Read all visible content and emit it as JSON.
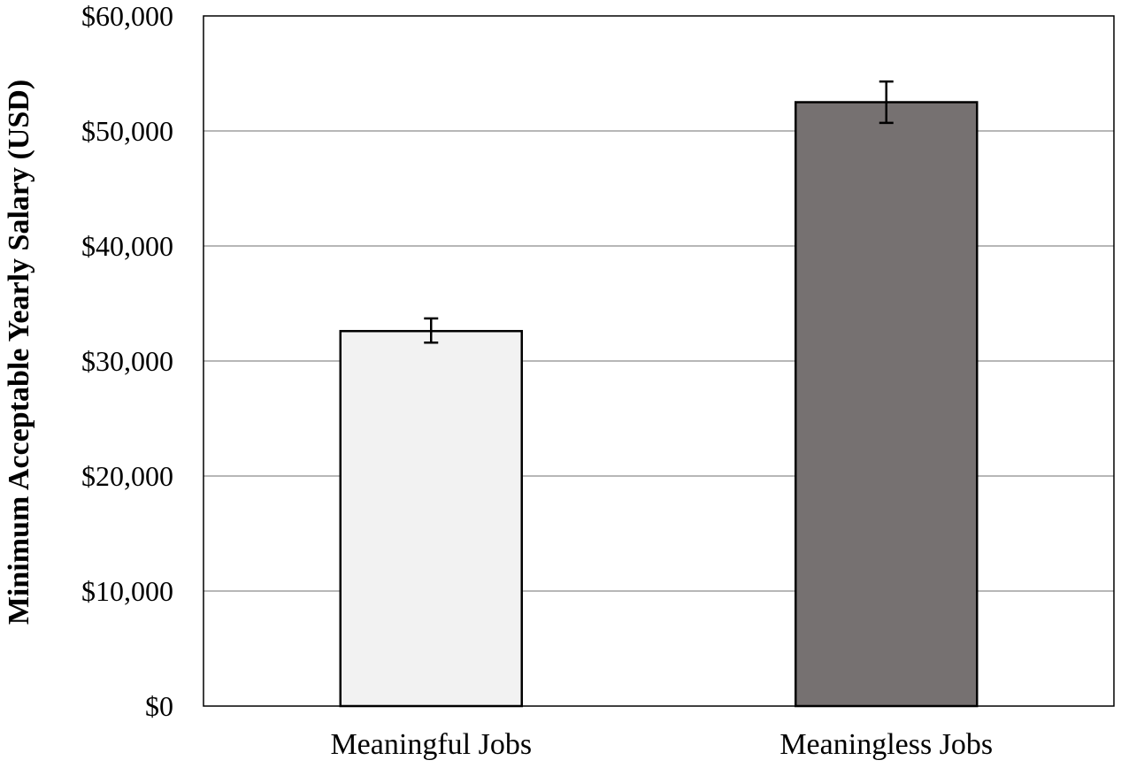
{
  "chart_data": {
    "type": "bar",
    "categories": [
      "Meaningful Jobs",
      "Meaningless Jobs"
    ],
    "values": [
      32600,
      52500
    ],
    "error_bars": [
      {
        "low": 31600,
        "high": 33700
      },
      {
        "low": 50700,
        "high": 54300
      }
    ],
    "ylabel": "Minimum Acceptable Yearly Salary (USD)",
    "ylim": [
      0,
      60000
    ],
    "yticks": [
      0,
      10000,
      20000,
      30000,
      40000,
      50000,
      60000
    ],
    "ytick_labels": [
      "$0",
      "$10,000",
      "$20,000",
      "$30,000",
      "$40,000",
      "$50,000",
      "$60,000"
    ],
    "bar_colors": [
      "#f2f2f2",
      "#767171"
    ],
    "grid": true,
    "legend": "none"
  }
}
